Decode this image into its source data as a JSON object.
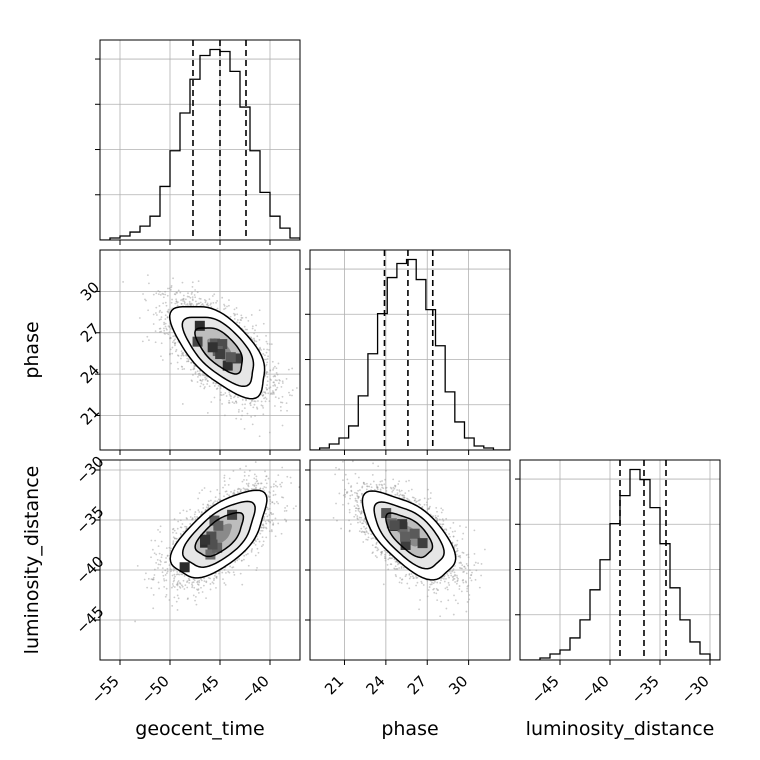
{
  "colors": {
    "line": "#000000",
    "grid": "#b0b0b0",
    "scatter": "#9a9a9a",
    "background": "#ffffff"
  },
  "chart_data": {
    "type": "corner",
    "title": "",
    "parameters": [
      {
        "name": "geocent_time",
        "label": "geocent_time",
        "range": [
          -57,
          -37
        ],
        "ticks": [
          -55,
          -50,
          -45,
          -40
        ],
        "tick_labels": [
          "−55",
          "−50",
          "−45",
          "−40"
        ],
        "quantiles": [
          -47.7,
          -45.0,
          -42.4
        ],
        "hist_edges": [
          -57,
          -56,
          -55,
          -54,
          -53,
          -52,
          -51,
          -50,
          -49,
          -48,
          -47,
          -46,
          -45,
          -44,
          -43,
          -42,
          -41,
          -40,
          -39,
          -38,
          -37
        ],
        "hist_values": [
          0,
          0.01,
          0.02,
          0.04,
          0.07,
          0.12,
          0.27,
          0.45,
          0.64,
          0.81,
          0.93,
          0.96,
          0.95,
          0.85,
          0.67,
          0.45,
          0.24,
          0.12,
          0.06,
          0.01
        ]
      },
      {
        "name": "phase",
        "label": "phase",
        "range": [
          18.5,
          33
        ],
        "ticks": [
          21,
          24,
          27,
          30
        ],
        "tick_labels": [
          "21",
          "24",
          "27",
          "30"
        ],
        "quantiles": [
          23.9,
          25.6,
          27.4
        ],
        "hist_edges": [
          18.5,
          19.2,
          19.9,
          20.6,
          21.3,
          22.0,
          22.7,
          23.4,
          24.1,
          24.8,
          25.5,
          26.2,
          26.9,
          27.6,
          28.3,
          29.0,
          29.7,
          30.4,
          31.1,
          31.8,
          32.5,
          33.0
        ],
        "hist_values": [
          0,
          0.01,
          0.03,
          0.06,
          0.12,
          0.27,
          0.48,
          0.68,
          0.86,
          0.93,
          0.95,
          0.85,
          0.7,
          0.52,
          0.29,
          0.14,
          0.06,
          0.02,
          0.01,
          0.0,
          0.0
        ]
      },
      {
        "name": "luminosity_distance",
        "label": "luminosity_distance",
        "range": [
          -49,
          -29
        ],
        "ticks": [
          -45,
          -40,
          -35,
          -30
        ],
        "tick_labels": [
          "−45",
          "−40",
          "−35",
          "−30"
        ],
        "quantiles": [
          -39.0,
          -36.6,
          -34.4
        ],
        "hist_edges": [
          -49,
          -48,
          -47,
          -46,
          -45,
          -44,
          -43,
          -42,
          -41,
          -40,
          -39,
          -38,
          -37,
          -36,
          -35,
          -34,
          -33,
          -32,
          -31,
          -30,
          -29
        ],
        "hist_values": [
          0.0,
          0.0,
          0.01,
          0.03,
          0.05,
          0.11,
          0.2,
          0.35,
          0.5,
          0.68,
          0.82,
          0.95,
          0.9,
          0.76,
          0.58,
          0.36,
          0.2,
          0.09,
          0.03,
          0.0
        ]
      }
    ],
    "pairs": [
      {
        "x": "geocent_time",
        "y": "phase",
        "mean": [
          -45.0,
          25.8
        ],
        "sd": [
          2.4,
          1.7
        ],
        "corr": -0.62
      },
      {
        "x": "geocent_time",
        "y": "luminosity_distance",
        "mean": [
          -45.0,
          -36.5
        ],
        "sd": [
          2.4,
          2.2
        ],
        "corr": 0.62
      },
      {
        "x": "phase",
        "y": "luminosity_distance",
        "mean": [
          25.7,
          -36.5
        ],
        "sd": [
          1.7,
          2.2
        ],
        "corr": -0.62
      }
    ],
    "contour_levels_sigma": [
      0.5,
      1.0,
      1.5,
      2.0
    ],
    "grid": true
  }
}
